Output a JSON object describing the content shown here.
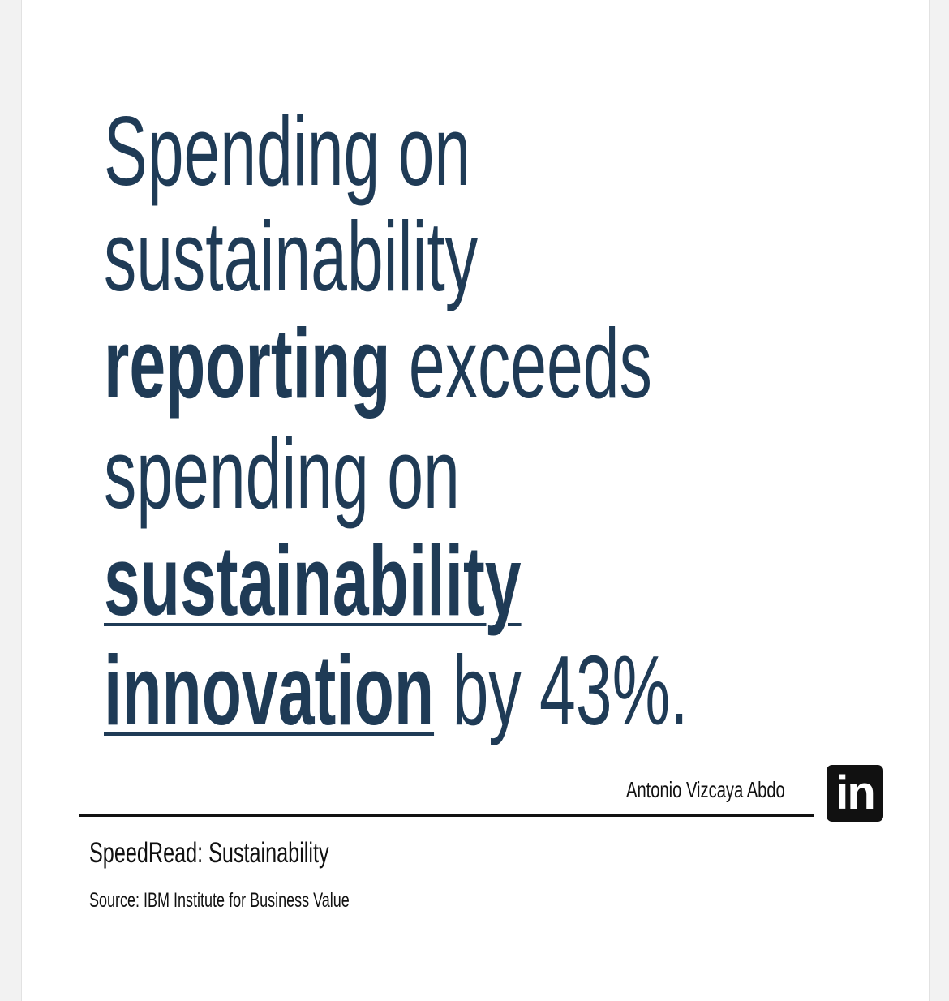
{
  "headline": {
    "lines": [
      [
        {
          "text": "Spending on",
          "bold": false,
          "underline": false
        }
      ],
      [
        {
          "text": "sustainability",
          "bold": false,
          "underline": false
        }
      ],
      [
        {
          "text": "reporting",
          "bold": true,
          "underline": false
        },
        {
          "text": "exceeds",
          "bold": false,
          "underline": false
        }
      ],
      [
        {
          "text": "spending on",
          "bold": false,
          "underline": false
        }
      ],
      [
        {
          "text": "sustainability",
          "bold": true,
          "underline": true
        }
      ],
      [
        {
          "text": "innovation",
          "bold": true,
          "underline": true
        },
        {
          "text": "by 43%.",
          "bold": false,
          "underline": false
        }
      ]
    ]
  },
  "author": "Antonio Vizcaya Abdo",
  "logo": "in",
  "footer": {
    "title": "SpeedRead: Sustainability",
    "source": "Source: IBM Institute for Business Value"
  }
}
